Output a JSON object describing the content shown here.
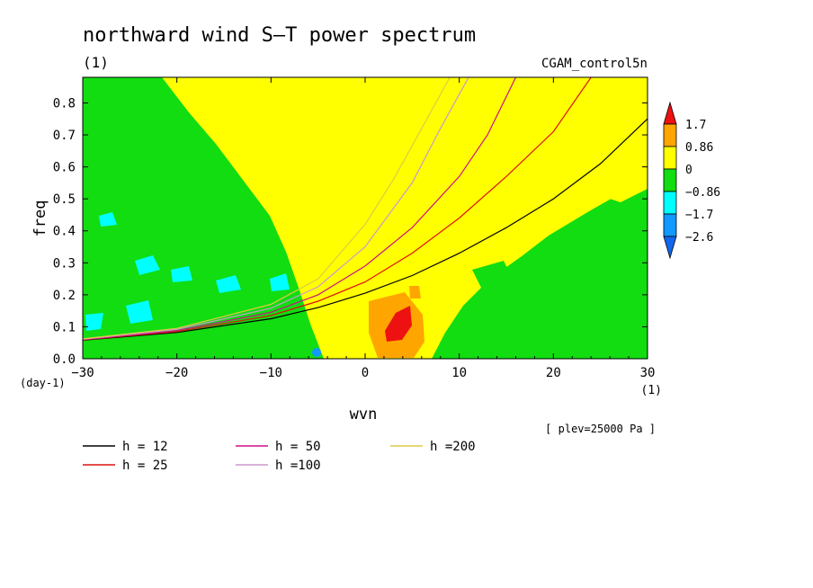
{
  "chart_data": {
    "type": "heatmap",
    "title": "northward wind S–T power spectrum",
    "title_unit": "(1)",
    "run_name": "CGAM_control5n",
    "xlabel": "wvn",
    "xunit": "(1)",
    "ylabel": "freq",
    "yunit": "(day-1)",
    "xlim": [
      -30,
      30
    ],
    "ylim": [
      0,
      0.88
    ],
    "x_ticks": [
      {
        "value": -30,
        "label": "−30"
      },
      {
        "value": -20,
        "label": "−20"
      },
      {
        "value": -10,
        "label": "−10"
      },
      {
        "value": 0,
        "label": "0"
      },
      {
        "value": 10,
        "label": "10"
      },
      {
        "value": 20,
        "label": "20"
      },
      {
        "value": 30,
        "label": "30"
      }
    ],
    "y_ticks": [
      {
        "value": 0.0,
        "label": "0.0"
      },
      {
        "value": 0.1,
        "label": "0.1"
      },
      {
        "value": 0.2,
        "label": "0.2"
      },
      {
        "value": 0.3,
        "label": "0.3"
      },
      {
        "value": 0.4,
        "label": "0.4"
      },
      {
        "value": 0.5,
        "label": "0.5"
      },
      {
        "value": 0.6,
        "label": "0.6"
      },
      {
        "value": 0.7,
        "label": "0.7"
      },
      {
        "value": 0.8,
        "label": "0.8"
      }
    ],
    "colorbar": {
      "levels": [
        {
          "label": "1.7"
        },
        {
          "label": "0.86"
        },
        {
          "label": "0"
        },
        {
          "label": "−0.86"
        },
        {
          "label": "−1.7"
        },
        {
          "label": "−2.6"
        }
      ],
      "colors": [
        "#ee1111",
        "#ffa500",
        "#ffff00",
        "#11dd11",
        "#00ffff",
        "#1199ff",
        "#1166ee"
      ]
    },
    "regions": [
      {
        "color": "#11dd11",
        "level": "-0.86 to 0",
        "description": "westward half"
      },
      {
        "color": "#ffff00",
        "level": "0 to 0.86",
        "description": "central band"
      },
      {
        "color": "#ffa500",
        "level": "0.86 to 1.7",
        "description": "peak near wvn 3, freq 0.1"
      },
      {
        "color": "#ee1111",
        "level": "> 1.7",
        "description": "max near wvn 3, freq 0.1"
      }
    ],
    "series": [
      {
        "name": "h = 12",
        "color": "#000000",
        "points": [
          [
            -30,
            0.058
          ],
          [
            -20,
            0.082
          ],
          [
            -10,
            0.125
          ],
          [
            -5,
            0.16
          ],
          [
            0,
            0.205
          ],
          [
            5,
            0.26
          ],
          [
            10,
            0.33
          ],
          [
            15,
            0.41
          ],
          [
            20,
            0.5
          ],
          [
            25,
            0.61
          ],
          [
            30,
            0.75
          ]
        ]
      },
      {
        "name": "h = 25",
        "color": "#dd1111",
        "points": [
          [
            -30,
            0.059
          ],
          [
            -20,
            0.085
          ],
          [
            -10,
            0.135
          ],
          [
            -5,
            0.18
          ],
          [
            0,
            0.24
          ],
          [
            5,
            0.33
          ],
          [
            10,
            0.44
          ],
          [
            15,
            0.57
          ],
          [
            20,
            0.71
          ],
          [
            24,
            0.88
          ]
        ]
      },
      {
        "name": "h = 50",
        "color": "#cc1188",
        "points": [
          [
            -30,
            0.06
          ],
          [
            -20,
            0.088
          ],
          [
            -10,
            0.145
          ],
          [
            -5,
            0.2
          ],
          [
            0,
            0.29
          ],
          [
            5,
            0.41
          ],
          [
            10,
            0.57
          ],
          [
            13,
            0.7
          ],
          [
            16,
            0.88
          ]
        ]
      },
      {
        "name": "h =100",
        "color": "#cc99cc",
        "points": [
          [
            -30,
            0.061
          ],
          [
            -20,
            0.092
          ],
          [
            -10,
            0.158
          ],
          [
            -5,
            0.225
          ],
          [
            0,
            0.35
          ],
          [
            5,
            0.55
          ],
          [
            8,
            0.72
          ],
          [
            11,
            0.88
          ]
        ]
      },
      {
        "name": "h =200",
        "color": "#ddcc44",
        "points": [
          [
            -30,
            0.062
          ],
          [
            -20,
            0.095
          ],
          [
            -10,
            0.17
          ],
          [
            -5,
            0.25
          ],
          [
            0,
            0.42
          ],
          [
            3,
            0.56
          ],
          [
            6,
            0.72
          ],
          [
            9,
            0.88
          ]
        ]
      }
    ],
    "legend_position": "bottom-left",
    "footnote": "[ plev=25000 Pa ]"
  }
}
